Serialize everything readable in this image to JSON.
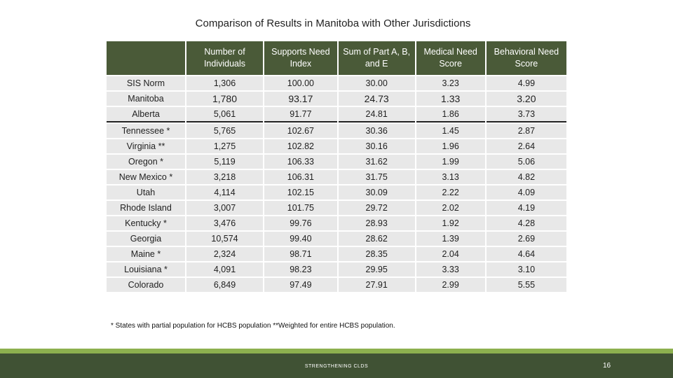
{
  "title": "Comparison of Results in Manitoba with Other Jurisdictions",
  "table": {
    "headers": [
      "",
      "Number of Individuals",
      "Supports Need Index",
      "Sum of Part A, B, and E",
      "Medical Need Score",
      "Behavioral Need Score"
    ],
    "rows": [
      [
        "SIS Norm",
        "1,306",
        "100.00",
        "30.00",
        "3.23",
        "4.99"
      ],
      [
        "Manitoba",
        "1,780",
        "93.17",
        "24.73",
        "1.33",
        "3.20"
      ],
      [
        "Alberta",
        "5,061",
        "91.77",
        "24.81",
        "1.86",
        "3.73"
      ],
      [
        "Tennessee *",
        "5,765",
        "102.67",
        "30.36",
        "1.45",
        "2.87"
      ],
      [
        "Virginia **",
        "1,275",
        "102.82",
        "30.16",
        "1.96",
        "2.64"
      ],
      [
        "Oregon *",
        "5,119",
        "106.33",
        "31.62",
        "1.99",
        "5.06"
      ],
      [
        "New Mexico *",
        "3,218",
        "106.31",
        "31.75",
        "3.13",
        "4.82"
      ],
      [
        "Utah",
        "4,114",
        "102.15",
        "30.09",
        "2.22",
        "4.09"
      ],
      [
        "Rhode Island",
        "3,007",
        "101.75",
        "29.72",
        "2.02",
        "4.19"
      ],
      [
        "Kentucky *",
        "3,476",
        "99.76",
        "28.93",
        "1.92",
        "4.28"
      ],
      [
        "Georgia",
        "10,574",
        "99.40",
        "28.62",
        "1.39",
        "2.69"
      ],
      [
        "Maine *",
        "2,324",
        "98.71",
        "28.35",
        "2.04",
        "4.64"
      ],
      [
        "Louisiana *",
        "4,091",
        "98.23",
        "29.95",
        "3.33",
        "3.10"
      ],
      [
        "Colorado",
        "6,849",
        "97.49",
        "27.91",
        "2.99",
        "5.55"
      ]
    ]
  },
  "footnote": "* States with partial population for HCBS population **Weighted for entire HCBS population.",
  "footer": {
    "label": "STRENGTHENING CLDS",
    "page_number": "16"
  },
  "colors": {
    "header_bg": "#4a5a38",
    "cell_bg": "#e8e8e8",
    "accent_light": "#8db04f",
    "accent_dark": "#405234"
  }
}
